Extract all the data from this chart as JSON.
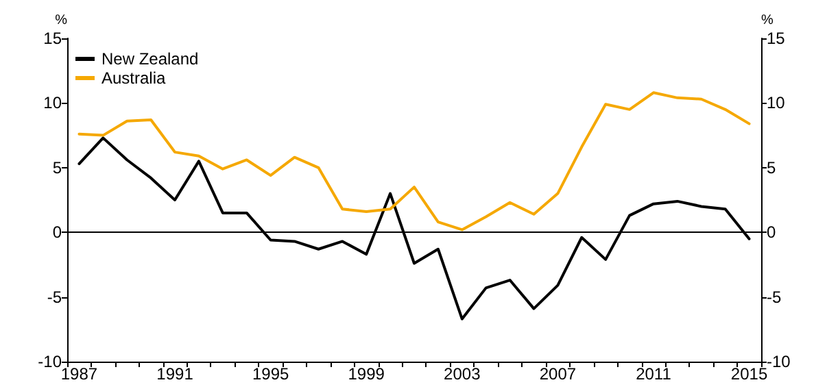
{
  "chart_data": {
    "type": "line",
    "categories": [
      "1987",
      null,
      null,
      null,
      "1991",
      null,
      null,
      null,
      "1995",
      null,
      null,
      null,
      "1999",
      null,
      null,
      null,
      "2003",
      null,
      null,
      null,
      "2007",
      null,
      null,
      null,
      "2011",
      null,
      null,
      null,
      "2015"
    ],
    "series": [
      {
        "name": "New Zealand",
        "color": "#000000",
        "values": [
          5.3,
          7.3,
          5.6,
          4.2,
          2.5,
          5.5,
          1.5,
          1.5,
          -0.6,
          -0.7,
          -1.3,
          -0.7,
          -1.7,
          3.0,
          -2.4,
          -1.3,
          -6.7,
          -4.3,
          -3.7,
          -5.9,
          -4.1,
          -0.4,
          -2.1,
          1.3,
          2.2,
          2.4,
          2.0,
          1.8,
          -0.5
        ]
      },
      {
        "name": "Australia",
        "color": "#f5a800",
        "values": [
          7.6,
          7.5,
          8.6,
          8.7,
          6.2,
          5.9,
          4.9,
          5.6,
          4.4,
          5.8,
          5.0,
          1.8,
          1.6,
          1.8,
          3.5,
          0.8,
          0.2,
          1.2,
          2.3,
          1.4,
          3.0,
          6.6,
          9.9,
          9.5,
          10.8,
          10.4,
          10.3,
          9.5,
          8.4
        ]
      }
    ],
    "ylabel": "%",
    "y2label": "%",
    "ylim": [
      -10,
      15
    ],
    "yticks": [
      -10,
      -5,
      0,
      5,
      10,
      15
    ],
    "y2lim": [
      -10,
      15
    ],
    "y2ticks": [
      -10,
      -5,
      0,
      5,
      10,
      15
    ],
    "ref_lines": [
      {
        "axis": "y",
        "value": 0,
        "color": "#000000"
      }
    ],
    "grid": false,
    "legend": "top left",
    "marker": "none",
    "line_style": "solid"
  }
}
